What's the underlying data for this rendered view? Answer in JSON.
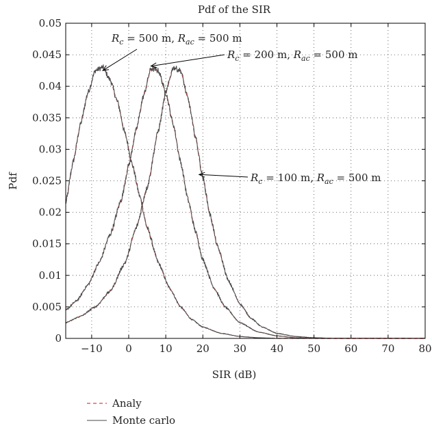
{
  "chart_data": {
    "type": "line",
    "title": "Pdf of the SIR",
    "xlabel": "SIR (dB)",
    "ylabel": "Pdf",
    "xlim": [
      -17,
      80
    ],
    "ylim": [
      0,
      0.05
    ],
    "xticks": [
      -10,
      0,
      10,
      20,
      30,
      40,
      50,
      60,
      70,
      80
    ],
    "yticks": [
      0,
      0.005,
      0.01,
      0.015,
      0.02,
      0.025,
      0.03,
      0.035,
      0.04,
      0.045,
      0.05
    ],
    "grid": true,
    "legend_position": "bottom-left, below plot",
    "legend": [
      {
        "label": "Analy",
        "style": "dashed",
        "color": "#e0413f"
      },
      {
        "label": "Monte carlo",
        "style": "solid",
        "color": "#4a4a4a"
      }
    ],
    "series": [
      {
        "name": "R_c = 500 m, R_ac = 500 m",
        "x": [
          -17,
          -15,
          -13,
          -11,
          -9,
          -7,
          -5,
          -3,
          -1,
          1,
          3,
          5,
          8,
          11,
          14,
          17,
          20,
          25,
          30,
          35,
          40,
          50,
          60,
          80
        ],
        "y": [
          0.0215,
          0.028,
          0.034,
          0.039,
          0.0425,
          0.043,
          0.041,
          0.0375,
          0.0325,
          0.0275,
          0.0225,
          0.0175,
          0.012,
          0.008,
          0.005,
          0.003,
          0.0018,
          0.0008,
          0.0003,
          0.0001,
          0.0,
          0.0,
          0.0,
          0.0
        ]
      },
      {
        "name": "R_c = 200 m, R_ac = 500 m",
        "x": [
          -17,
          -14,
          -11,
          -8,
          -5,
          -2,
          0,
          2,
          4,
          6,
          8,
          10,
          12,
          14,
          16,
          18,
          20,
          23,
          26,
          30,
          35,
          40,
          45,
          50,
          60,
          80
        ],
        "y": [
          0.0045,
          0.006,
          0.0085,
          0.012,
          0.0165,
          0.022,
          0.0275,
          0.033,
          0.0385,
          0.0428,
          0.0425,
          0.039,
          0.034,
          0.028,
          0.022,
          0.017,
          0.0125,
          0.008,
          0.005,
          0.0025,
          0.001,
          0.0004,
          0.0001,
          0.0,
          0.0,
          0.0
        ]
      },
      {
        "name": "R_c = 100 m, R_ac = 500 m",
        "x": [
          -17,
          -13,
          -9,
          -5,
          -1,
          2,
          5,
          8,
          10,
          12,
          14,
          16,
          18,
          20,
          22,
          24,
          27,
          30,
          33,
          36,
          40,
          45,
          50,
          55,
          60,
          80
        ],
        "y": [
          0.0025,
          0.0035,
          0.005,
          0.0075,
          0.012,
          0.0175,
          0.024,
          0.033,
          0.039,
          0.043,
          0.0425,
          0.038,
          0.032,
          0.0255,
          0.0195,
          0.0145,
          0.009,
          0.0055,
          0.0032,
          0.0018,
          0.0008,
          0.0003,
          0.0001,
          0.0,
          0.0,
          0.0
        ]
      }
    ],
    "annotations": [
      {
        "text": "R_c = 500 m, R_ac = 500 m",
        "points_to": [
          -7,
          0.0425
        ]
      },
      {
        "text": "R_c = 200 m, R_ac = 500 m",
        "points_to": [
          6,
          0.0432
        ]
      },
      {
        "text": "R_c = 100 m, R_ac = 500 m",
        "points_to": [
          19,
          0.026
        ]
      }
    ]
  }
}
